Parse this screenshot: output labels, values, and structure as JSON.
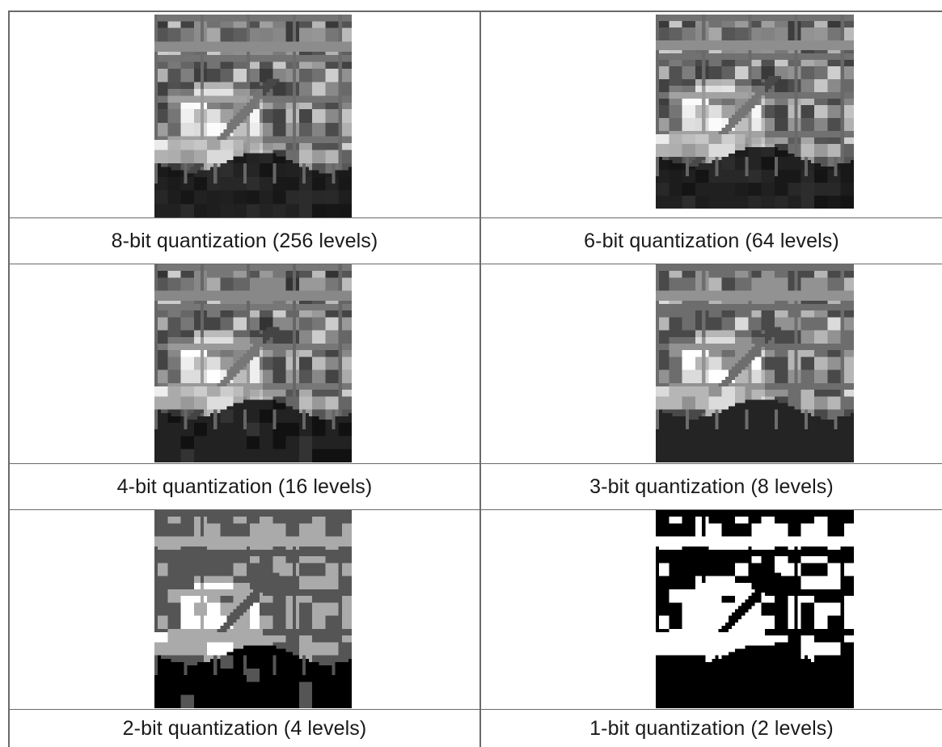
{
  "panels": [
    {
      "caption": "8-bit quantization (256 levels)",
      "levels": 256
    },
    {
      "caption": "6-bit quantization (64 levels)",
      "levels": 64
    },
    {
      "caption": "4-bit quantization (16 levels)",
      "levels": 16
    },
    {
      "caption": "3-bit quantization (8 levels)",
      "levels": 8
    },
    {
      "caption": "2-bit quantization (4 levels)",
      "levels": 4
    },
    {
      "caption": "1-bit quantization (2 levels)",
      "levels": 2
    }
  ]
}
